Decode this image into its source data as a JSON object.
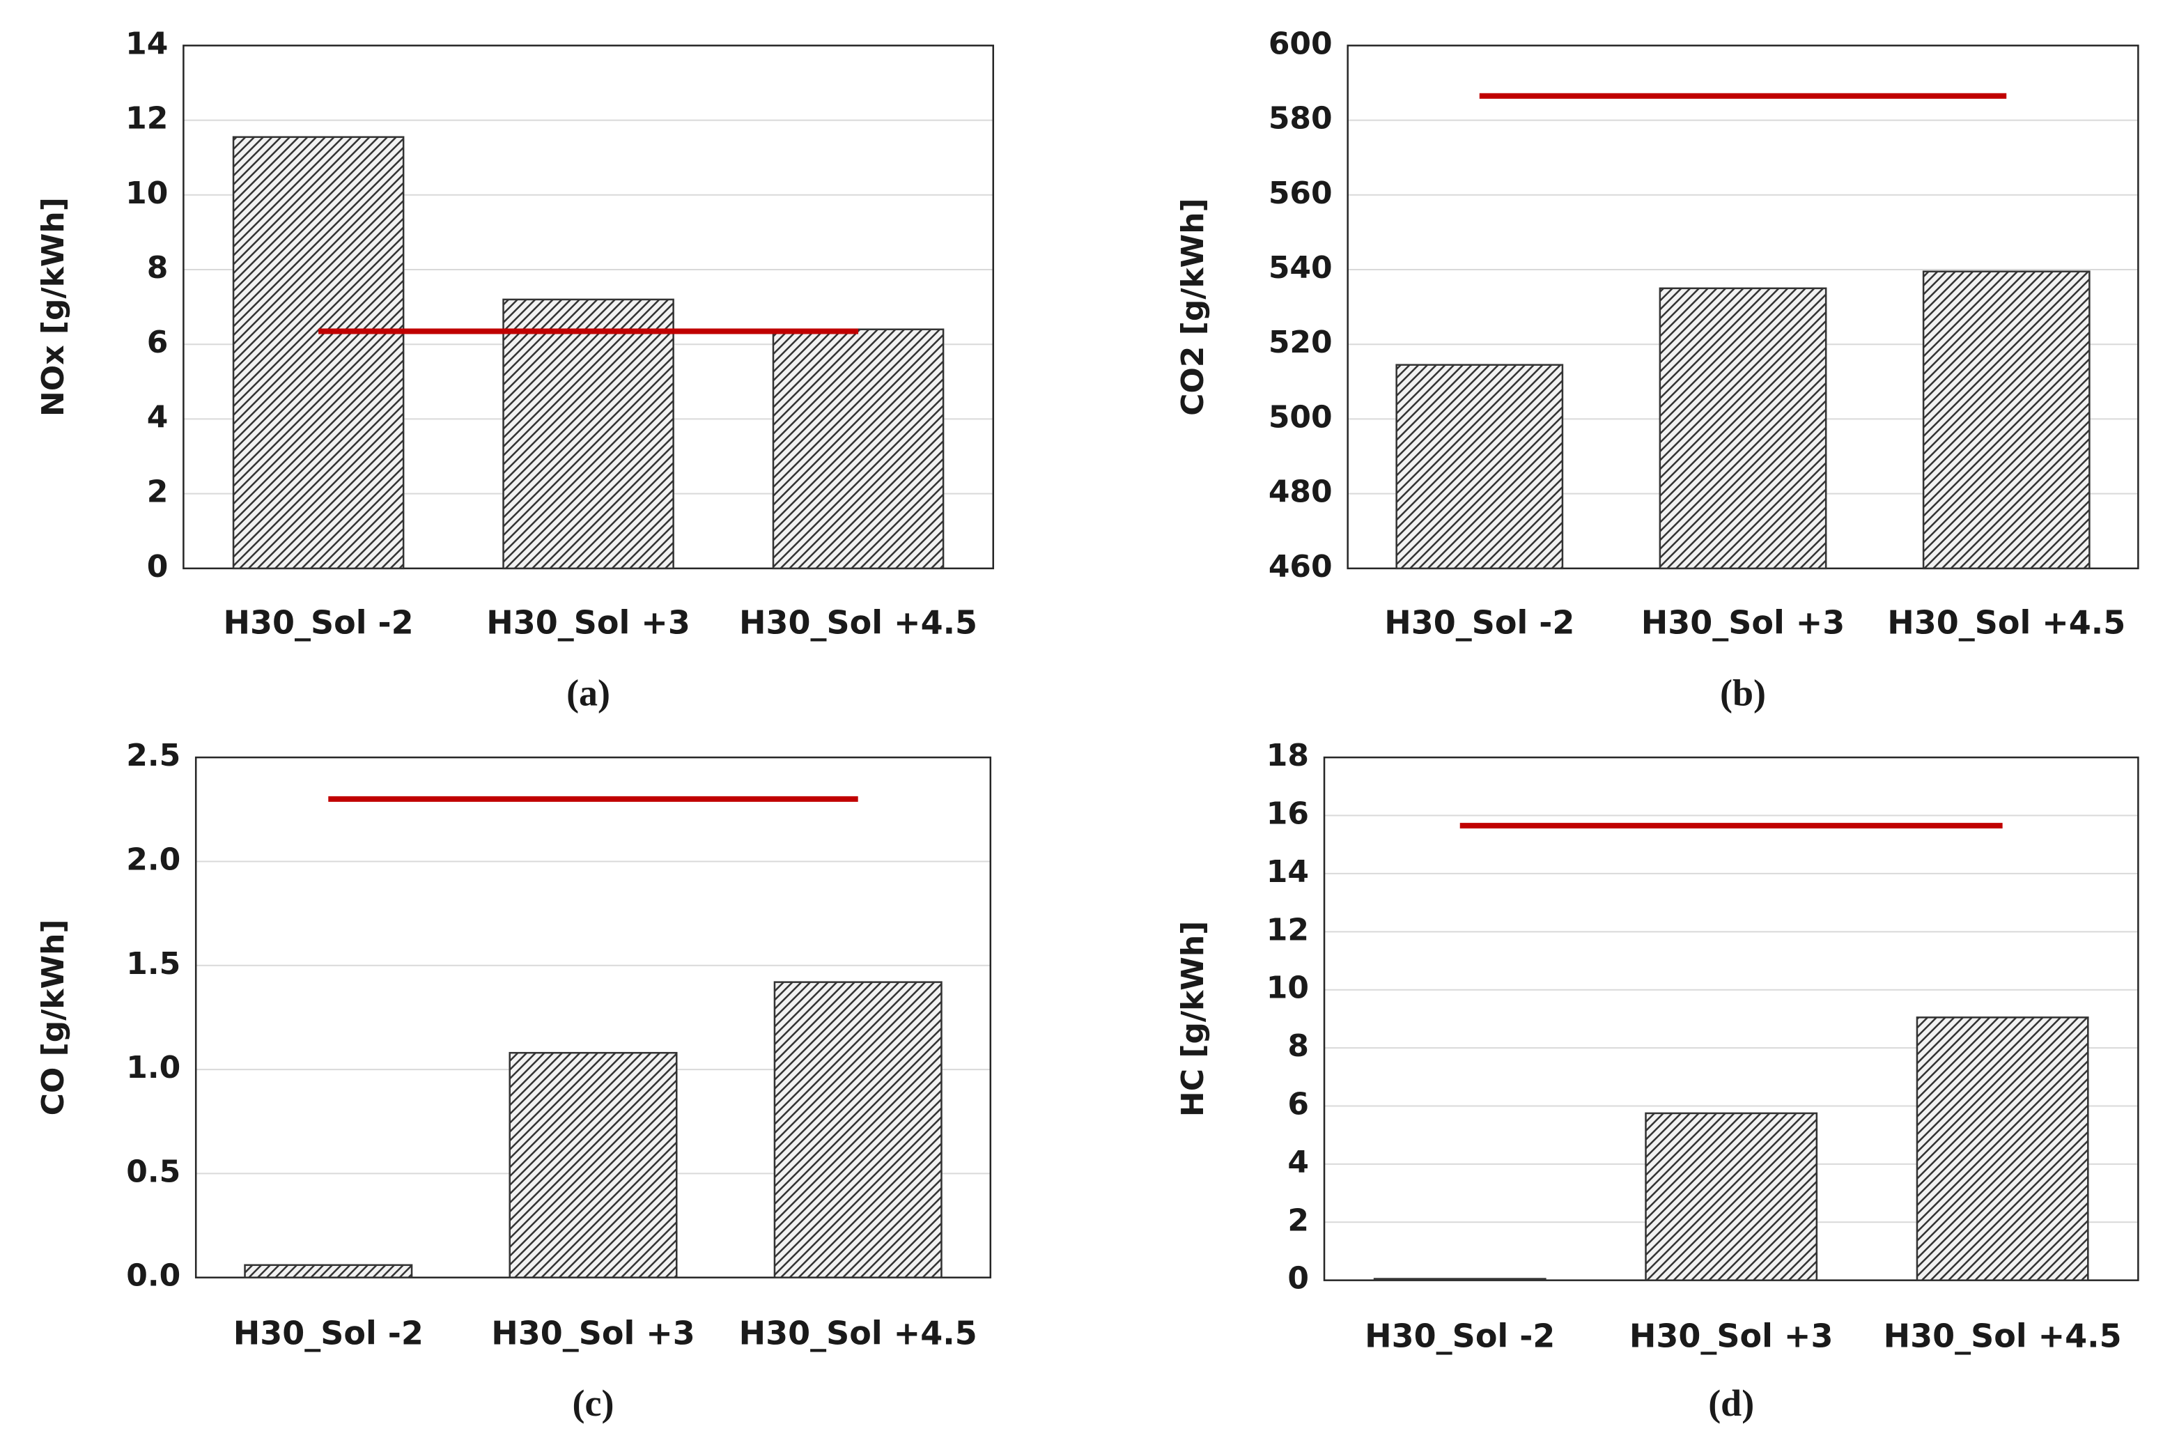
{
  "chart_data": [
    {
      "type": "bar",
      "y_label": "NOx [g/kWh]",
      "categories": [
        "H30_Sol -2",
        "H30_Sol +3",
        "H30_Sol +4.5"
      ],
      "values": [
        11.55,
        7.2,
        6.4
      ],
      "color": "#333333",
      "ylim": [
        0,
        14
      ],
      "yticks": [
        0,
        2,
        4,
        6,
        8,
        10,
        12,
        14
      ],
      "grid": true,
      "reference_line": {
        "value": 6.35,
        "color": "#c00000"
      },
      "caption": "(a)"
    },
    {
      "type": "bar",
      "y_label": "CO2 [g/kWh]",
      "categories": [
        "H30_Sol -2",
        "H30_Sol +3",
        "H30_Sol +4.5"
      ],
      "values": [
        514.5,
        535,
        539.5
      ],
      "color": "#333333",
      "ylim": [
        460,
        600
      ],
      "yticks": [
        460,
        480,
        500,
        520,
        540,
        560,
        580,
        600
      ],
      "grid": true,
      "reference_line": {
        "value": 586.5,
        "color": "#c00000"
      },
      "caption": "(b)"
    },
    {
      "type": "bar",
      "y_label": "CO [g/kWh]",
      "categories": [
        "H30_Sol -2",
        "H30_Sol +3",
        "H30_Sol +4.5"
      ],
      "values": [
        0.06,
        1.08,
        1.42
      ],
      "color": "#333333",
      "ylim": [
        0,
        2.5
      ],
      "yticks": [
        {
          "value": 0,
          "label": "0.0"
        },
        0.5,
        {
          "value": 1,
          "label": "1.0"
        },
        1.5,
        {
          "value": 2,
          "label": "2.0"
        },
        2.5
      ],
      "grid": true,
      "reference_line": {
        "value": 2.3,
        "color": "#c00000"
      },
      "caption": "(c)"
    },
    {
      "type": "bar",
      "y_label": "HC [g/kWh]",
      "categories": [
        "H30_Sol -2",
        "H30_Sol +3",
        "H30_Sol +4.5"
      ],
      "values": [
        0.05,
        5.75,
        9.05
      ],
      "color": "#333333",
      "ylim": [
        0,
        18
      ],
      "yticks": [
        0,
        2,
        4,
        6,
        8,
        10,
        12,
        14,
        16,
        18
      ],
      "grid": true,
      "reference_line": {
        "value": 15.65,
        "color": "#c00000"
      },
      "caption": "(d)"
    }
  ]
}
